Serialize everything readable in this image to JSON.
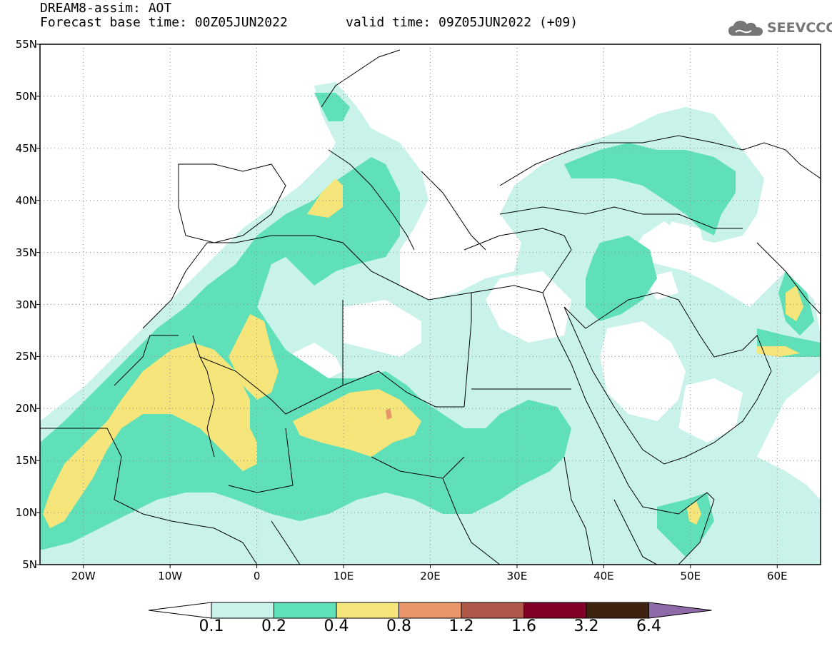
{
  "header": {
    "title": "DREAM8-assim: AOT",
    "base_time": "Forecast base time: 00Z05JUN2022",
    "valid_time": "valid time: 09Z05JUN2022 (+09)",
    "logo_text": "SEEVCCC",
    "logo_icon": "cloud-icon"
  },
  "map": {
    "lat_labels": [
      "55N",
      "50N",
      "45N",
      "40N",
      "35N",
      "30N",
      "25N",
      "20N",
      "15N",
      "10N",
      "5N"
    ],
    "lon_labels": [
      "20W",
      "10W",
      "0",
      "10E",
      "20E",
      "30E",
      "40E",
      "50E",
      "60E"
    ],
    "lat_range": [
      5,
      55
    ],
    "lon_range": [
      -25,
      65
    ],
    "grid": "dotted"
  },
  "colorbar": {
    "levels": [
      "0.1",
      "0.2",
      "0.4",
      "0.8",
      "1.2",
      "1.6",
      "3.2",
      "6.4"
    ],
    "colors": [
      "#ffffff",
      "#c8f2ea",
      "#5fe0b8",
      "#f5e57a",
      "#e8956a",
      "#b0584a",
      "#800026",
      "#3d2310",
      "#8f6aa8"
    ]
  }
}
